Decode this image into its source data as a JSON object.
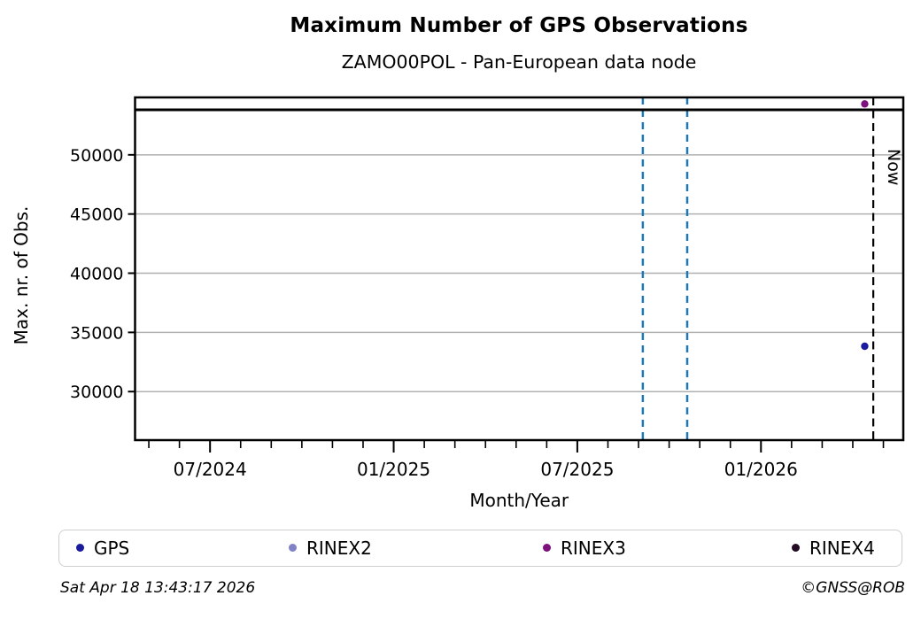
{
  "header": {
    "title": "Maximum Number of GPS Observations",
    "subtitle": "ZAMO00POL - Pan-European data node"
  },
  "chart_data": {
    "type": "scatter",
    "title": "Maximum Number of GPS Observations",
    "subtitle": "ZAMO00POL - Pan-European data node",
    "xlabel": "Month/Year",
    "ylabel": "Max. nr. of Obs.",
    "x_axis": {
      "unit": "months since 2024-05 tick",
      "xlim": [
        -0.45,
        24.65
      ],
      "month_tick_count": 25,
      "major_ticks": [
        {
          "m": 2,
          "label": "07/2024"
        },
        {
          "m": 8,
          "label": "01/2025"
        },
        {
          "m": 14,
          "label": "07/2025"
        },
        {
          "m": 20,
          "label": "01/2026"
        }
      ]
    },
    "y_axis": {
      "ylim": [
        25900,
        54850
      ],
      "ticks": [
        30000,
        35000,
        40000,
        45000,
        50000
      ]
    },
    "grid": "horizontal",
    "grid_color": "#b0b0b0",
    "max_obs_line": {
      "value": 53800,
      "color": "#000000",
      "style": "solid"
    },
    "event_lines": [
      {
        "m": 16.14,
        "color": "#1f77b4",
        "style": "dashed"
      },
      {
        "m": 17.59,
        "color": "#1f77b4",
        "style": "dashed"
      }
    ],
    "now_line": {
      "m": 23.67,
      "label": "Now",
      "color": "#000000",
      "style": "dashed"
    },
    "series": [
      {
        "name": "GPS",
        "color": "#1b1b9e",
        "points": [
          {
            "m": 23.39,
            "value": 33830
          }
        ]
      },
      {
        "name": "RINEX2",
        "color": "#8181c6",
        "points": []
      },
      {
        "name": "RINEX3",
        "color": "#7d117d",
        "points": [
          {
            "m": 23.39,
            "value": 54300
          }
        ]
      },
      {
        "name": "RINEX4",
        "color": "#230b24",
        "points": []
      }
    ],
    "legend_position": "bottom"
  },
  "legend": {
    "items": [
      {
        "label": "GPS",
        "color": "#1b1b9e"
      },
      {
        "label": "RINEX2",
        "color": "#8181c6"
      },
      {
        "label": "RINEX3",
        "color": "#7d117d"
      },
      {
        "label": "RINEX4",
        "color": "#230b24"
      }
    ]
  },
  "footer": {
    "timestamp": "Sat Apr 18 13:43:17 2026",
    "credit": "©GNSS@ROB"
  }
}
